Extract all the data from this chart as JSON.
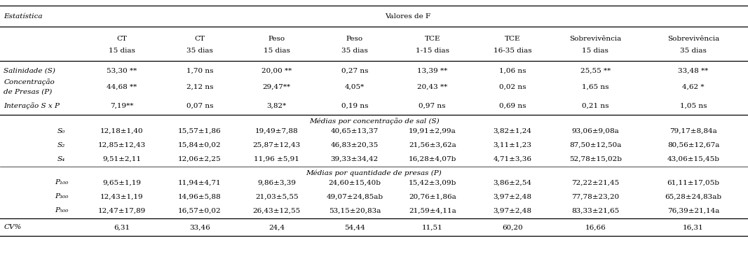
{
  "title": "Valores de F",
  "col_headers_line1": [
    "CT",
    "CT",
    "Peso",
    "Peso",
    "TCE",
    "TCE",
    "Sobrevivência",
    "Sobrevivência"
  ],
  "col_headers_line2": [
    "15 dias",
    "35 dias",
    "15 dias",
    "35 dias",
    "1-15 dias",
    "16-35 dias",
    "15 dias",
    "35 dias"
  ],
  "row_label_col": "Estatística",
  "f_section_rows": [
    {
      "label": "Salinidade (S)",
      "label2": "",
      "values": [
        "53,30 **",
        "1,70 ns",
        "20,00 **",
        "0,27 ns",
        "13,39 **",
        "1,06 ns",
        "25,55 **",
        "33,48 **"
      ]
    },
    {
      "label": "Concentração",
      "label2": "de Presas (P)",
      "values": [
        "44,68 **",
        "2,12 ns",
        "29,47**",
        "4,05*",
        "20,43 **",
        "0,02 ns",
        "1,65 ns",
        "4,62 *"
      ]
    },
    {
      "label": "Interação S x P",
      "label2": "",
      "values": [
        "7,19**",
        "0,07 ns",
        "3,82*",
        "0,19 ns",
        "0,97 ns",
        "0,69 ns",
        "0,21 ns",
        "1,05 ns"
      ]
    }
  ],
  "sal_section_title": "Médias por concentração de sal (S)",
  "sal_section_rows": [
    {
      "label": "S₀",
      "values": [
        "12,18±1,40",
        "15,57±1,86",
        "19,49±7,88",
        "40,65±13,37",
        "19,91±2,99a",
        "3,82±1,24",
        "93,06±9,08a",
        "79,17±8,84a"
      ]
    },
    {
      "label": "S₂",
      "values": [
        "12,85±12,43",
        "15,84±0,02",
        "25,87±12,43",
        "46,83±20,35",
        "21,56±3,62a",
        "3,11±1,23",
        "87,50±12,50a",
        "80,56±12,67a"
      ]
    },
    {
      "label": "S₄",
      "values": [
        "9,51±2,11",
        "12,06±2,25",
        "11,96 ±5,91",
        "39,33±34,42",
        "16,28±4,07b",
        "4,71±3,36",
        "52,78±15,02b",
        "43,06±15,45b"
      ]
    }
  ],
  "presas_section_title": "Médias por quantidade de presas (P)",
  "presas_section_rows": [
    {
      "label": "P₁₀₀",
      "values": [
        "9,65±1,19",
        "11,94±4,71",
        "9,86±3,39",
        "24,60±15,40b",
        "15,42±3,09b",
        "3,86±2,54",
        "72,22±21,45",
        "61,11±17,05b"
      ]
    },
    {
      "label": "P₃₀₀",
      "values": [
        "12,43±1,19",
        "14,96±5,88",
        "21,03±5,55",
        "49,07±24,85ab",
        "20,76±1,86a",
        "3,97±2,48",
        "77,78±23,20",
        "65,28±24,83ab"
      ]
    },
    {
      "label": "P₅₀₀",
      "values": [
        "12,47±17,89",
        "16,57±0,02",
        "26,43±12,55",
        "53,15±20,83a",
        "21,59±4,11a",
        "3,97±2,48",
        "83,33±21,65",
        "76,39±21,14a"
      ]
    }
  ],
  "cv_row": {
    "label": "CV%",
    "values": [
      "6,31",
      "33,46",
      "24,4",
      "54,44",
      "11,51",
      "60,20",
      "16,66",
      "16,31"
    ]
  },
  "bg_color": "#ffffff",
  "text_color": "#000000",
  "font_size": 7.5
}
